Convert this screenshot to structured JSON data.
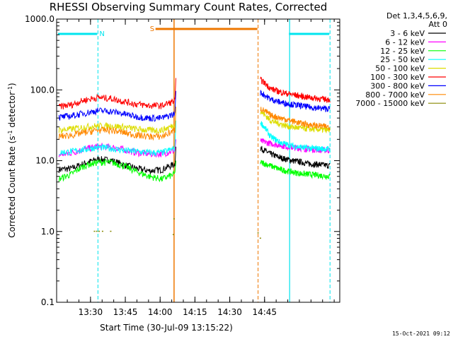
{
  "chart_data": {
    "type": "line",
    "title": "RHESSI Observing Summary Count Rates, Corrected",
    "xlabel": "Start Time (30-Jul-09 13:15:22)",
    "ylabel_parts": [
      "Corrected Count Rate (s",
      "-1",
      " detector",
      "-1",
      ")"
    ],
    "yscale": "log",
    "ylim": [
      0.1,
      1000
    ],
    "ytick_labels": [
      "0.1",
      "1.0",
      "10.0",
      "100.0",
      "1000.0"
    ],
    "xlim_min": [
      0,
      122
    ],
    "x_unit": "minutes since 13:15:22",
    "xtick_labels": [
      "13:30",
      "13:45",
      "14:00",
      "14:15",
      "14:30",
      "14:45"
    ],
    "xtick_min": [
      14.6,
      29.6,
      44.6,
      59.6,
      74.6,
      89.6
    ],
    "legend_header": [
      "Det 1,3,4,5,6,9,",
      "Att 0"
    ],
    "legend_position": "right-outside",
    "grid": false,
    "timestamp": "15-Oct-2021 09:12",
    "flags": [
      {
        "label": "N",
        "color": "#00e5ee",
        "x_start_min": 0,
        "x_end_min": 17.5,
        "note": "night"
      },
      {
        "label": "",
        "color": "#00e5ee",
        "x_start_min": 99.5,
        "x_end_min": 117.5,
        "note": "night"
      },
      {
        "label": "S",
        "color": "#ee7700",
        "x_start_min": 42,
        "x_end_min": 86.5,
        "note": "saa"
      }
    ],
    "intervals": [
      {
        "type": "night",
        "color": "#00e5ee",
        "x_min": [
          0,
          17.8
        ]
      },
      {
        "type": "saa",
        "color": "#ee7700",
        "x_min": [
          50.6,
          86.8
        ]
      },
      {
        "type": "night",
        "color": "#00e5ee",
        "x_min": [
          100.4,
          117.8
        ]
      }
    ],
    "x_segments_min": [
      [
        1,
        51
      ],
      [
        87.8,
        117.8
      ]
    ],
    "series": [
      {
        "name": "3 - 6 keV",
        "color": "#000000",
        "values": [
          7.5,
          7.8,
          9.2,
          10.5,
          10.2,
          8.8,
          7.8,
          7.2,
          7.5,
          9.0
        ],
        "post": [
          15.0,
          12.5,
          11.0,
          10.2,
          9.6,
          9.0,
          8.8,
          8.5
        ]
      },
      {
        "name": "6 - 12 keV",
        "color": "#ff00ff",
        "values": [
          12,
          13,
          14.5,
          16,
          15.5,
          14.5,
          13,
          12.5,
          12.5,
          14
        ],
        "post": [
          19,
          17.5,
          16.5,
          15.5,
          15,
          14.5,
          14.2,
          14
        ]
      },
      {
        "name": "12 - 25 keV",
        "color": "#00ff00",
        "values": [
          5.5,
          6.5,
          8.5,
          9.5,
          9.5,
          8.5,
          7,
          6,
          5.5,
          6.5
        ],
        "post": [
          9.5,
          8.5,
          7.5,
          7,
          6.6,
          6.4,
          6.2,
          6
        ]
      },
      {
        "name": "25 - 50 keV",
        "color": "#00ffff",
        "values": [
          13,
          13.5,
          14.5,
          15.5,
          15,
          14,
          13.5,
          13,
          13,
          15
        ],
        "post": [
          35,
          22,
          18,
          16.5,
          15.5,
          15,
          14.8,
          14.5
        ]
      },
      {
        "name": "50 - 100 keV",
        "color": "#dddd00",
        "values": [
          27,
          28,
          30,
          31,
          31,
          30,
          28,
          27,
          27,
          32
        ],
        "post": [
          50,
          37,
          33,
          30,
          29,
          28,
          27.5,
          27
        ]
      },
      {
        "name": "100 - 300 keV",
        "color": "#ff0000",
        "values": [
          58,
          62,
          72,
          78,
          76,
          69,
          63,
          60,
          60,
          70
        ],
        "post": [
          140,
          105,
          93,
          87,
          82,
          78,
          75,
          73
        ]
      },
      {
        "name": "300 - 800 keV",
        "color": "#0000ff",
        "values": [
          41,
          43,
          47,
          51,
          50,
          46,
          42,
          40,
          40,
          46
        ],
        "post": [
          92,
          74,
          67,
          63,
          60,
          57,
          55,
          54
        ]
      },
      {
        "name": "800 - 7000 keV",
        "color": "#ff8800",
        "values": [
          22,
          23,
          25,
          27,
          27,
          25,
          23,
          22,
          22,
          27
        ],
        "post": [
          55,
          44,
          40,
          37,
          34,
          32,
          31,
          30
        ]
      },
      {
        "name": "7000 - 15000 keV",
        "color": "#888800",
        "values": [],
        "post": []
      }
    ]
  }
}
